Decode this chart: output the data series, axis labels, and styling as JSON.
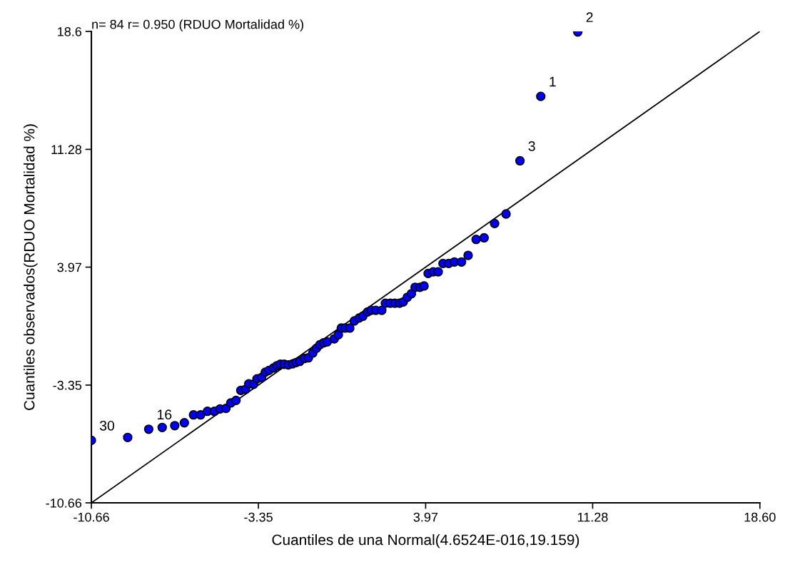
{
  "chart_data": {
    "type": "scatter",
    "title": "n= 84 r= 0.950 (RDUO Mortalidad %)",
    "xlabel": "Cuantiles de una Normal(4.6524E-016,19.159)",
    "ylabel": "Cuantiles observados(RDUO Mortalidad %)",
    "xlim": [
      -10.66,
      18.6
    ],
    "ylim": [
      -10.66,
      18.6
    ],
    "xticks": [
      -10.66,
      -3.35,
      3.97,
      11.28,
      {
        "value": 18.6,
        "label": "18.60"
      }
    ],
    "yticks": [
      -10.66,
      -3.35,
      3.97,
      11.28,
      18.6
    ],
    "grid": false,
    "legend": false,
    "marker": "circle",
    "series": [
      {
        "color": "#0000ff",
        "x": [
          -10.66,
          -9.07,
          -8.15,
          -7.56,
          -7.01,
          -6.59,
          -6.19,
          -5.88,
          -5.58,
          -5.28,
          -5.03,
          -4.77,
          -4.56,
          -4.33,
          -4.12,
          -3.91,
          -3.77,
          -3.56,
          -3.41,
          -3.21,
          -3.05,
          -2.89,
          -2.69,
          -2.54,
          -2.39,
          -2.22,
          -2.04,
          -1.85,
          -1.7,
          -1.54,
          -1.33,
          -1.16,
          -0.97,
          -0.81,
          -0.66,
          -0.5,
          -0.34,
          -0.03,
          0.15,
          0.28,
          0.44,
          0.65,
          0.85,
          1.06,
          1.22,
          1.43,
          1.58,
          1.79,
          2.05,
          2.21,
          2.42,
          2.62,
          2.83,
          2.99,
          3.17,
          3.35,
          3.51,
          3.72,
          3.9,
          4.08,
          4.3,
          4.52,
          4.73,
          4.98,
          5.23,
          5.54,
          5.83,
          6.18,
          6.53,
          6.99,
          7.49,
          8.1,
          9.01,
          10.63
        ],
        "values": [
          -6.78,
          -6.6,
          -6.09,
          -5.98,
          -5.87,
          -5.69,
          -5.2,
          -5.2,
          -4.98,
          -4.98,
          -4.83,
          -4.8,
          -4.46,
          -4.3,
          -3.68,
          -3.61,
          -3.27,
          -3.3,
          -2.96,
          -2.88,
          -2.55,
          -2.44,
          -2.29,
          -2.15,
          -2.06,
          -2.06,
          -2.1,
          -2.03,
          -1.95,
          -1.88,
          -1.7,
          -1.66,
          -1.36,
          -1.07,
          -0.85,
          -0.73,
          -0.67,
          -0.48,
          -0.23,
          0.19,
          0.19,
          0.19,
          0.63,
          0.81,
          0.92,
          1.19,
          1.29,
          1.29,
          1.29,
          1.73,
          1.73,
          1.73,
          1.73,
          1.81,
          2.1,
          2.32,
          2.72,
          2.72,
          2.8,
          3.58,
          3.68,
          3.68,
          4.2,
          4.2,
          4.29,
          4.29,
          4.7,
          5.69,
          5.79,
          6.68,
          7.27,
          10.57,
          14.57,
          18.57
        ]
      },
      {
        "type": "line",
        "color": "#000000",
        "marker": "none",
        "x": [
          -10.66,
          18.6
        ],
        "values": [
          -10.66,
          18.6
        ]
      }
    ],
    "annotations": [
      {
        "text": "30",
        "x": -10.66,
        "y": -6.78
      },
      {
        "text": "16",
        "x": -8.15,
        "y": -6.09
      },
      {
        "text": "3",
        "x": 8.1,
        "y": 10.57
      },
      {
        "text": "1",
        "x": 9.01,
        "y": 14.57
      },
      {
        "text": "2",
        "x": 10.63,
        "y": 18.57
      }
    ]
  }
}
